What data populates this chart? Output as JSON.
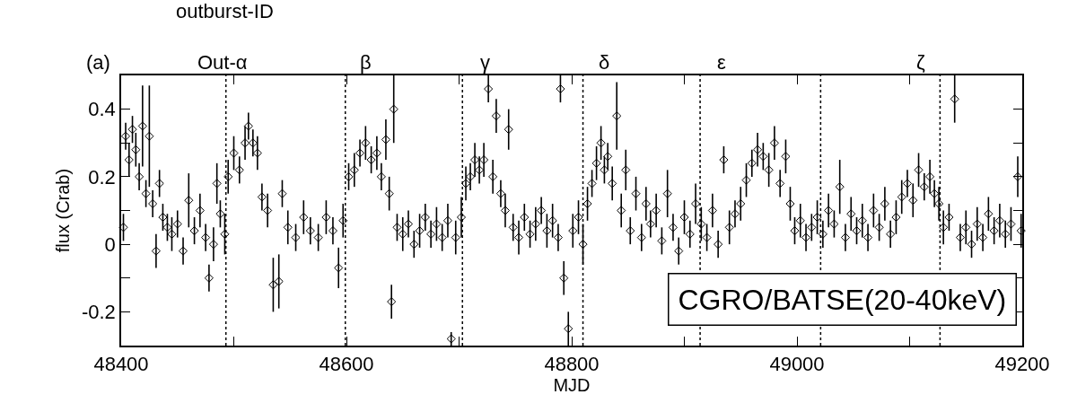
{
  "chart_data": {
    "type": "scatter",
    "xlabel": "MJD",
    "ylabel": "flux (Crab)",
    "xlim": [
      48400,
      49200
    ],
    "ylim": [
      -0.3,
      0.5
    ],
    "xticks": [
      48400,
      {
        "value": 48500,
        "label": null
      },
      48600,
      {
        "value": 48700,
        "label": null
      },
      48800,
      {
        "value": 48900,
        "label": null
      },
      49000,
      {
        "value": 49100,
        "label": null
      },
      49200
    ],
    "yticks": [
      {
        "value": -0.3,
        "label": null
      },
      -0.2,
      {
        "value": -0.1,
        "label": null
      },
      0,
      {
        "value": 0.1,
        "label": null
      },
      0.2,
      {
        "value": 0.3,
        "label": null
      },
      0.4
    ],
    "marker": "diamond",
    "x": [
      48402,
      48404,
      48407,
      48410,
      48413,
      48416,
      48419,
      48422,
      48425,
      48428,
      48431,
      48434,
      48437,
      48441,
      48445,
      48450,
      48455,
      48460,
      48465,
      48470,
      48475,
      48478,
      48482,
      48485,
      48488,
      48492,
      48495,
      48500,
      48505,
      48510,
      48513,
      48517,
      48521,
      48525,
      48530,
      48535,
      48540,
      48543,
      48548,
      48555,
      48562,
      48568,
      48575,
      48582,
      48588,
      48593,
      48597,
      48602,
      48607,
      48612,
      48617,
      48622,
      48627,
      48631,
      48635,
      48638,
      48640,
      48642,
      48645,
      48650,
      48655,
      48660,
      48665,
      48670,
      48675,
      48680,
      48685,
      48690,
      48693,
      48697,
      48702,
      48706,
      48710,
      48714,
      48718,
      48722,
      48726,
      48730,
      48733,
      48737,
      48741,
      48744,
      48748,
      48753,
      48758,
      48763,
      48768,
      48773,
      48778,
      48783,
      48788,
      48790,
      48793,
      48797,
      48801,
      48806,
      48810,
      48814,
      48818,
      48822,
      48826,
      48829,
      48832,
      48836,
      48840,
      48844,
      48848,
      48852,
      48857,
      48862,
      48866,
      48870,
      48875,
      48880,
      48885,
      48890,
      48895,
      48900,
      48905,
      48910,
      48915,
      48920,
      48925,
      48930,
      48935,
      48940,
      48945,
      48950,
      48955,
      48960,
      48965,
      48970,
      48975,
      48980,
      48985,
      48990,
      48994,
      48998,
      49003,
      49008,
      49013,
      49018,
      49023,
      49028,
      49033,
      49038,
      49043,
      49048,
      49053,
      49058,
      49063,
      49068,
      49073,
      49078,
      49083,
      49088,
      49093,
      49098,
      49103,
      49108,
      49113,
      49118,
      49122,
      49126,
      49130,
      49135,
      49140,
      49145,
      49150,
      49155,
      49160,
      49165,
      49170,
      49175,
      49180,
      49185,
      49190,
      49196,
      49199
    ],
    "series": [
      {
        "color": "#000000",
        "values": [
          0.05,
          0.32,
          0.25,
          0.34,
          0.28,
          0.2,
          0.35,
          0.15,
          0.32,
          0.12,
          -0.02,
          0.18,
          0.08,
          0.05,
          0.03,
          0.06,
          -0.02,
          0.13,
          0.04,
          0.1,
          0.02,
          -0.1,
          0.0,
          0.18,
          0.09,
          0.03,
          0.2,
          0.27,
          0.22,
          0.3,
          0.35,
          0.3,
          0.27,
          0.14,
          0.1,
          -0.12,
          -0.11,
          0.15,
          0.05,
          0.02,
          0.08,
          0.04,
          0.02,
          0.08,
          0.04,
          -0.07,
          0.07,
          0.2,
          0.22,
          0.27,
          0.3,
          0.25,
          0.27,
          0.2,
          0.31,
          0.15,
          -0.17,
          0.4,
          0.05,
          0.03,
          0.06,
          0.0,
          0.04,
          0.08,
          0.03,
          0.06,
          0.02,
          0.07,
          -0.28,
          0.02,
          0.08,
          0.18,
          0.2,
          0.25,
          0.22,
          0.25,
          0.46,
          0.2,
          0.38,
          0.15,
          0.1,
          0.34,
          0.05,
          0.02,
          0.08,
          0.03,
          0.06,
          0.1,
          0.04,
          0.07,
          0.02,
          0.46,
          -0.1,
          -0.25,
          0.04,
          0.08,
          0.0,
          0.12,
          0.18,
          0.24,
          0.3,
          0.22,
          0.26,
          0.18,
          0.38,
          0.1,
          0.22,
          0.04,
          0.15,
          0.02,
          0.12,
          0.06,
          0.1,
          0.01,
          0.15,
          0.05,
          -0.02,
          0.08,
          0.03,
          0.12,
          0.06,
          0.02,
          0.1,
          0.0,
          0.25,
          0.05,
          0.09,
          0.12,
          0.19,
          0.24,
          0.28,
          0.26,
          0.22,
          0.3,
          0.18,
          0.26,
          0.12,
          0.04,
          0.07,
          0.02,
          0.05,
          0.08,
          0.03,
          0.1,
          0.06,
          0.17,
          0.02,
          0.09,
          0.04,
          0.07,
          0.02,
          0.1,
          0.05,
          0.12,
          0.03,
          0.08,
          0.14,
          0.18,
          0.13,
          0.22,
          0.17,
          0.2,
          0.15,
          0.12,
          0.05,
          0.08,
          0.43,
          0.02,
          0.05,
          0.0,
          0.06,
          0.02,
          0.09,
          0.04,
          0.07,
          0.03,
          0.06,
          0.2,
          0.04
        ],
        "errors": [
          0.04,
          0.04,
          0.05,
          0.04,
          0.05,
          0.04,
          0.12,
          0.04,
          0.15,
          0.04,
          0.05,
          0.04,
          0.04,
          0.04,
          0.05,
          0.04,
          0.04,
          0.08,
          0.04,
          0.05,
          0.04,
          0.04,
          0.05,
          0.06,
          0.04,
          0.06,
          0.05,
          0.05,
          0.04,
          0.05,
          0.04,
          0.04,
          0.05,
          0.04,
          0.05,
          0.08,
          0.08,
          0.04,
          0.05,
          0.04,
          0.05,
          0.04,
          0.04,
          0.05,
          0.04,
          0.06,
          0.05,
          0.04,
          0.05,
          0.04,
          0.05,
          0.04,
          0.05,
          0.04,
          0.06,
          0.05,
          0.05,
          0.1,
          0.04,
          0.05,
          0.04,
          0.04,
          0.05,
          0.04,
          0.04,
          0.05,
          0.04,
          0.05,
          0.02,
          0.05,
          0.06,
          0.05,
          0.04,
          0.05,
          0.04,
          0.05,
          0.04,
          0.05,
          0.05,
          0.04,
          0.05,
          0.06,
          0.04,
          0.05,
          0.04,
          0.04,
          0.05,
          0.04,
          0.05,
          0.05,
          0.04,
          0.04,
          0.05,
          0.05,
          0.05,
          0.05,
          0.06,
          0.05,
          0.04,
          0.05,
          0.05,
          0.04,
          0.04,
          0.05,
          0.1,
          0.05,
          0.06,
          0.04,
          0.05,
          0.04,
          0.05,
          0.04,
          0.05,
          0.04,
          0.07,
          0.04,
          0.04,
          0.05,
          0.04,
          0.06,
          0.05,
          0.04,
          0.05,
          0.04,
          0.04,
          0.05,
          0.04,
          0.05,
          0.05,
          0.04,
          0.05,
          0.04,
          0.05,
          0.05,
          0.04,
          0.05,
          0.05,
          0.04,
          0.05,
          0.04,
          0.04,
          0.05,
          0.04,
          0.05,
          0.04,
          0.08,
          0.04,
          0.05,
          0.04,
          0.05,
          0.04,
          0.05,
          0.04,
          0.05,
          0.04,
          0.05,
          0.05,
          0.04,
          0.05,
          0.05,
          0.04,
          0.05,
          0.04,
          0.05,
          0.05,
          0.04,
          0.07,
          0.04,
          0.05,
          0.04,
          0.05,
          0.04,
          0.05,
          0.04,
          0.05,
          0.04,
          0.05,
          0.06,
          0.05
        ]
      }
    ],
    "ref_lines": [
      {
        "axis": "x",
        "value": 48493,
        "line_style": "dotted",
        "color": "#000000"
      },
      {
        "axis": "x",
        "value": 48599,
        "line_style": "dotted",
        "color": "#000000"
      },
      {
        "axis": "x",
        "value": 48703,
        "line_style": "dotted",
        "color": "#000000"
      },
      {
        "axis": "x",
        "value": 48810,
        "line_style": "dotted",
        "color": "#000000"
      },
      {
        "axis": "x",
        "value": 48914,
        "line_style": "dotted",
        "color": "#000000"
      },
      {
        "axis": "x",
        "value": 49021,
        "line_style": "dotted",
        "color": "#000000"
      },
      {
        "axis": "x",
        "value": 49127,
        "line_style": "dotted",
        "color": "#000000"
      }
    ],
    "annotations": [
      "outburst-ID",
      "(a)",
      "CGRO/BATSE(20-40keV)",
      "Out-α",
      "β",
      "γ",
      "δ",
      "ε",
      "ζ"
    ]
  }
}
